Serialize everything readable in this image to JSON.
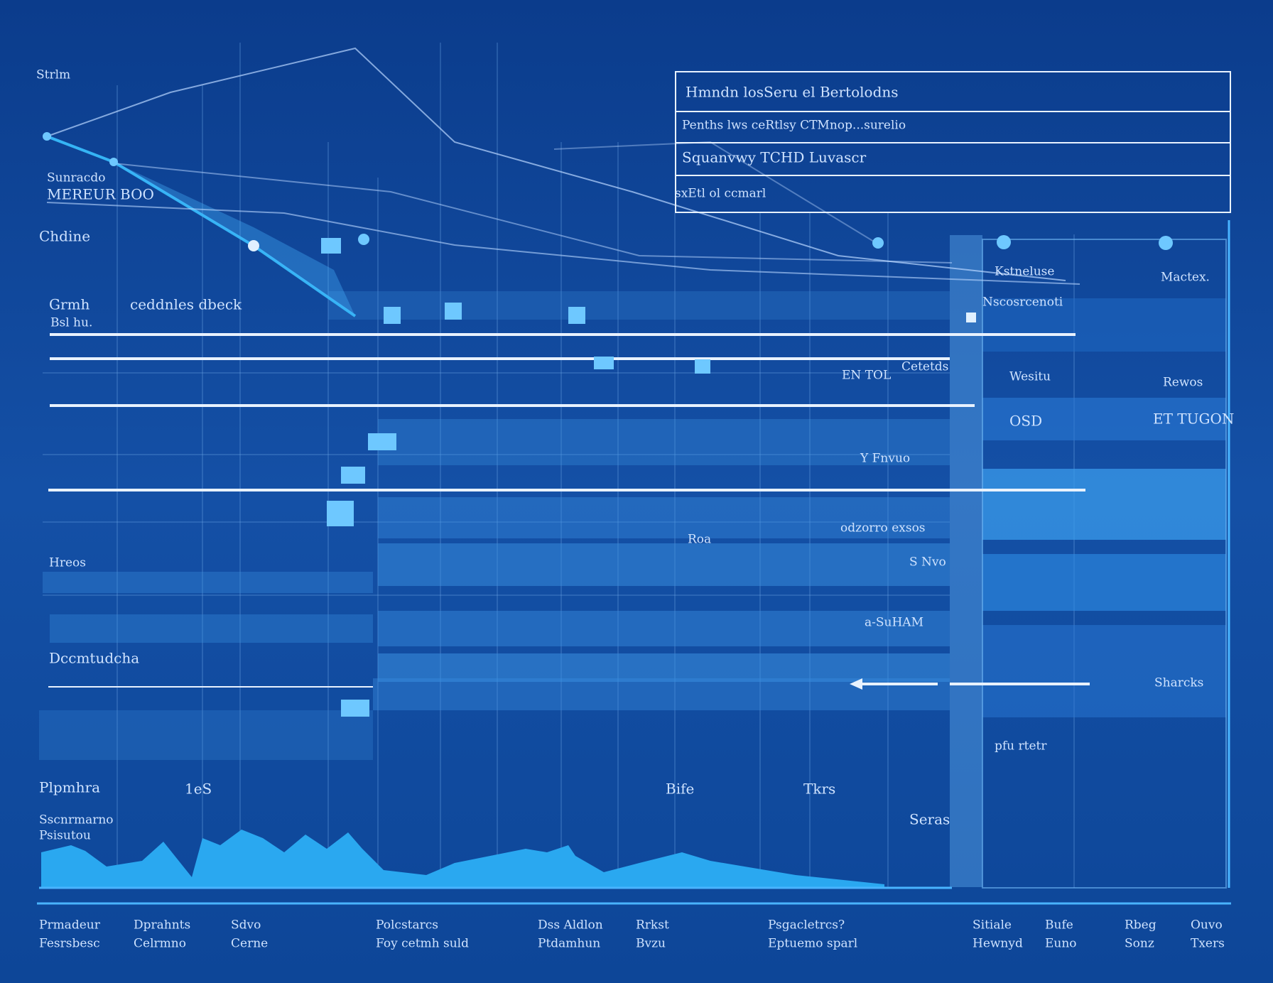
{
  "table": {
    "rows": [
      "Hmndn losSeru el Bertolodns",
      "Penths lws ceRtlsy CTMnop...surelio",
      "Squanvwy TCHD Luvascr",
      "sxEtl ol ccmarl"
    ]
  },
  "left_labels": [
    "Strlm",
    "Sunracdo",
    "MEREUR BOO",
    "Chdine",
    "Grmh",
    "ceddnles dbeck",
    "Bsl hu.",
    "Hreos",
    "Dccmtudcha",
    "Plpmhra",
    "Sscnrmarno",
    "Psisutou"
  ],
  "mid_labels": [
    "1eS",
    "Bife",
    "Tkrs",
    "Seras",
    "Y Fnvuo",
    "odzorro exsos",
    "Roa",
    "S Nvo",
    "a-SuHAM",
    "EN TOL",
    "Cetetds"
  ],
  "right_labels": [
    "Kstneluse",
    "Mactex.",
    "Nscosrcenoti",
    "Wesitu",
    "Rewos",
    "OSD",
    "ET TUGON",
    "Sharcks",
    "pfu rtetr"
  ],
  "bottom_labels": [
    [
      "Prmadeur",
      "Fesrsbesc"
    ],
    [
      "Dprahnts",
      "Celrmno"
    ],
    [
      "Sdvo",
      "Cerne"
    ],
    [
      "Polcstarcs",
      "Foy cetmh suld"
    ],
    [
      "Dss Aldlon",
      "Ptdamhun"
    ],
    [
      "Rrkst",
      "Bvzu"
    ],
    [
      "Psgacletrcs?",
      "Eptuemo sparl"
    ],
    [
      "Sitiale",
      "Hewnyd"
    ],
    [
      "Bufe",
      "Euno"
    ],
    [
      "Rbeg",
      "Sonz"
    ],
    [
      "Ouvo",
      "Txers"
    ]
  ]
}
